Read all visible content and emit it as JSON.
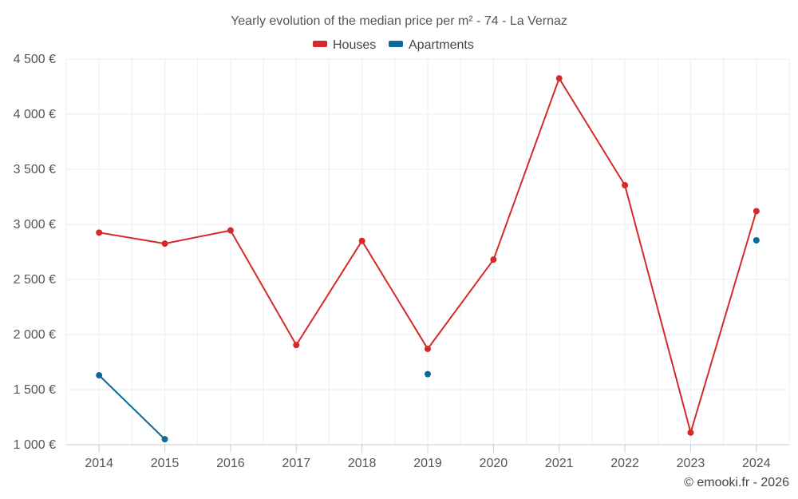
{
  "chart_data": {
    "type": "line",
    "title": "Yearly evolution of the median price per m² - 74 - La Vernaz",
    "categories": [
      "2014",
      "2015",
      "2016",
      "2017",
      "2018",
      "2019",
      "2020",
      "2021",
      "2022",
      "2023",
      "2024"
    ],
    "ylim": [
      1000,
      4500
    ],
    "yticks": [
      1000,
      1500,
      2000,
      2500,
      3000,
      3500,
      4000,
      4500
    ],
    "ytick_labels": [
      "1 000 €",
      "1 500 €",
      "2 000 €",
      "2 500 €",
      "3 000 €",
      "3 500 €",
      "4 000 €",
      "4 500 €"
    ],
    "grid": true,
    "legend_position": "top-center",
    "series": [
      {
        "name": "Houses",
        "color": "#d42a2a",
        "values": [
          2925,
          2825,
          2945,
          1905,
          2850,
          1870,
          2680,
          4325,
          3355,
          1110,
          3120
        ]
      },
      {
        "name": "Apartments",
        "color": "#0a6a9a",
        "values": [
          1630,
          1050,
          null,
          null,
          null,
          1640,
          null,
          null,
          null,
          null,
          2855
        ]
      }
    ]
  },
  "credit": "© emooki.fr - 2026"
}
